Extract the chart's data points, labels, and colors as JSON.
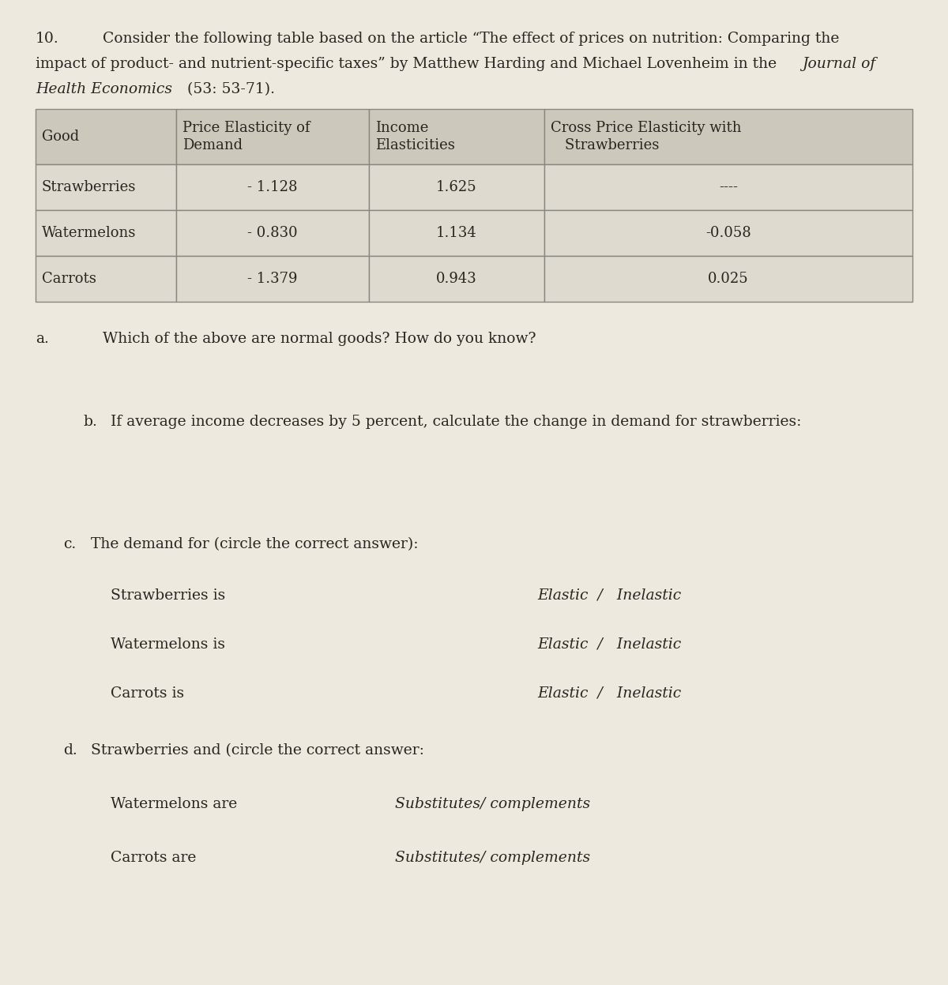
{
  "page_bg": "#ede9df",
  "font_color": "#2a2520",
  "table_header_bg": "#ccc8bc",
  "table_row_bg": "#dedad0",
  "table_border": "#888880",
  "q_num": "10.",
  "line1": "Consider the following table based on the article “The effect of prices on nutrition: Comparing the",
  "line2_normal": "impact of product- and nutrient-specific taxes” by Matthew Harding and Michael Lovenheim in the ",
  "line2_italic": "Journal of",
  "line3_italic": "Health Economics",
  "line3_normal": " (53: 53-71).",
  "col_headers": [
    "Good",
    "Price Elasticity of\nDemand",
    "Income\nElasticities",
    "Cross Price Elasticity with\n Strawberries"
  ],
  "rows": [
    [
      "Strawberries",
      "- 1.128",
      "1.625",
      "----"
    ],
    [
      "Watermelons",
      "- 0.830",
      "1.134",
      "-0.058"
    ],
    [
      "Carrots",
      "- 1.379",
      "0.943",
      "0.025"
    ]
  ],
  "part_a_label": "a.",
  "part_a_text": "Which of the above are normal goods? How do you know?",
  "part_b_label": "b.",
  "part_b_text": "If average income decreases by 5 percent, calculate the change in demand for strawberries:",
  "part_c_label": "c.",
  "part_c_text": "The demand for (circle the correct answer):",
  "c_rows": [
    [
      "Strawberries is",
      "Elastic  /   Inelastic"
    ],
    [
      "Watermelons is",
      "Elastic  /   Inelastic"
    ],
    [
      "Carrots is",
      "Elastic  /   Inelastic"
    ]
  ],
  "part_d_label": "d.",
  "part_d_text": "Strawberries and (circle the correct answer:",
  "d_rows": [
    [
      "Watermelons are",
      "Substitutes/ complements"
    ],
    [
      "Carrots are",
      "Substitutes/ complements"
    ]
  ],
  "fs": 13.5,
  "fs_table": 13.0
}
